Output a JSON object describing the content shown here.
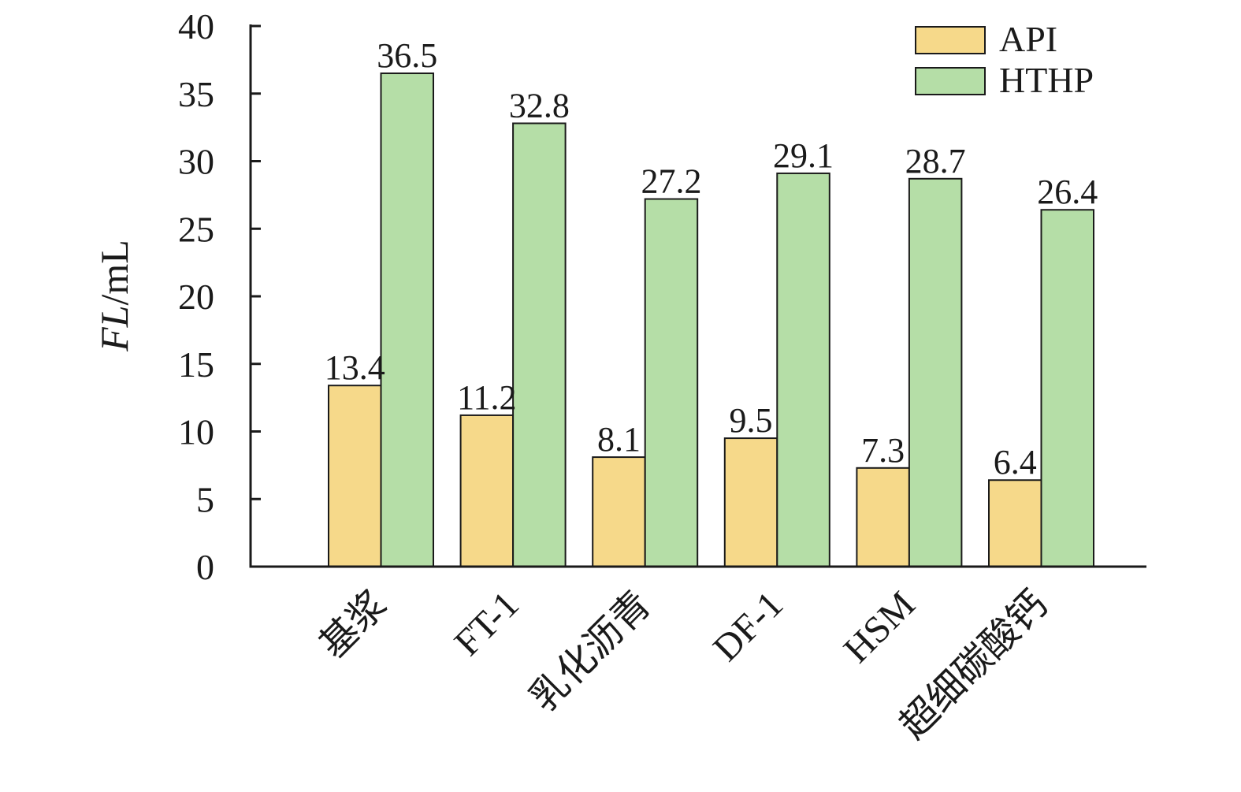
{
  "chart_data": {
    "type": "bar",
    "title": "",
    "xlabel": "",
    "ylabel": {
      "italic": "FL",
      "rest": "/mL"
    },
    "ylim": [
      0,
      40
    ],
    "yticks": [
      0,
      5,
      10,
      15,
      20,
      25,
      30,
      35,
      40
    ],
    "grid": false,
    "legend_position": "top-right",
    "categories": [
      "基浆",
      "FT-1",
      "乳化沥青",
      "DF-1",
      "HSM",
      "超细碳酸钙"
    ],
    "series": [
      {
        "name": "API",
        "color": "#f6d98a",
        "values": [
          13.4,
          11.2,
          8.1,
          9.5,
          7.3,
          6.4
        ]
      },
      {
        "name": "HTHP",
        "color": "#b5dea7",
        "values": [
          36.5,
          32.8,
          27.2,
          29.1,
          28.7,
          26.4
        ]
      }
    ]
  }
}
